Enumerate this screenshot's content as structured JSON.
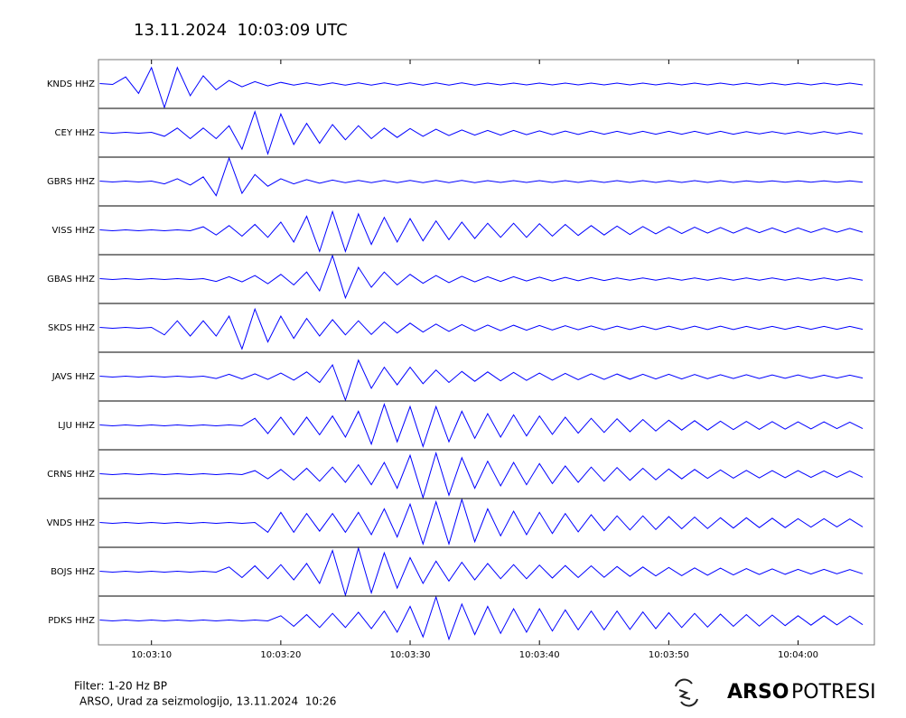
{
  "chart_data": {
    "type": "line",
    "title": "13.11.2024  10:03:09 UTC",
    "x": [
      6,
      7,
      8,
      9,
      10,
      11,
      12,
      13,
      14,
      15,
      16,
      17,
      18,
      19,
      20,
      21,
      22,
      23,
      24,
      25,
      26,
      27,
      28,
      29,
      30,
      31,
      32,
      33,
      34,
      35,
      36,
      37,
      38,
      39,
      40,
      41,
      42,
      43,
      44,
      45,
      46,
      47,
      48,
      49,
      50,
      51,
      52,
      53,
      54,
      55,
      56,
      57,
      58,
      59,
      60,
      61,
      62,
      63,
      64,
      65
    ],
    "xlim": [
      5.9,
      65.9
    ],
    "xticks": [
      {
        "value": 10,
        "label": "10:03:10"
      },
      {
        "value": 20,
        "label": "10:03:20"
      },
      {
        "value": 30,
        "label": "10:03:30"
      },
      {
        "value": 40,
        "label": "10:03:40"
      },
      {
        "value": 50,
        "label": "10:03:50"
      },
      {
        "value": 60,
        "label": "10:04:00"
      }
    ],
    "series": [
      {
        "name": "KNDS HHZ",
        "color": "#0000ff",
        "values": [
          0.02,
          0.02,
          0.3,
          0.4,
          0.7,
          1,
          0.7,
          0.5,
          0.35,
          0.25,
          0.15,
          0.12,
          0.1,
          0.08,
          0.07,
          0.05,
          0.05,
          0.05,
          0.05,
          0.05,
          0.05,
          0.05,
          0.05,
          0.05,
          0.05,
          0.05,
          0.05,
          0.05,
          0.05,
          0.05,
          0.04,
          0.04,
          0.04,
          0.04,
          0.04,
          0.04,
          0.04,
          0.04,
          0.04,
          0.04,
          0.04,
          0.04,
          0.04,
          0.04,
          0.04,
          0.04,
          0.04,
          0.04,
          0.04,
          0.04,
          0.04,
          0.04,
          0.04,
          0.04,
          0.04,
          0.04,
          0.04,
          0.04,
          0.04,
          0.04
        ]
      },
      {
        "name": "CEY HHZ",
        "color": "#0000ff",
        "values": [
          0.02,
          0.02,
          0.02,
          0.02,
          0.02,
          0.15,
          0.2,
          0.25,
          0.2,
          0.25,
          0.3,
          0.7,
          0.9,
          0.9,
          0.8,
          0.5,
          0.4,
          0.45,
          0.35,
          0.3,
          0.3,
          0.25,
          0.2,
          0.2,
          0.18,
          0.15,
          0.15,
          0.12,
          0.12,
          0.1,
          0.1,
          0.1,
          0.1,
          0.08,
          0.08,
          0.08,
          0.07,
          0.07,
          0.07,
          0.06,
          0.06,
          0.06,
          0.06,
          0.06,
          0.06,
          0.06,
          0.06,
          0.06,
          0.06,
          0.06,
          0.05,
          0.05,
          0.05,
          0.05,
          0.05,
          0.05,
          0.05,
          0.05,
          0.05,
          0.05
        ]
      },
      {
        "name": "GBRS HHZ",
        "color": "#0000ff",
        "values": [
          0.02,
          0.02,
          0.02,
          0.02,
          0.02,
          0.1,
          0.12,
          0.15,
          0.2,
          0.6,
          1,
          0.5,
          0.3,
          0.2,
          0.12,
          0.1,
          0.08,
          0.07,
          0.06,
          0.05,
          0.05,
          0.05,
          0.05,
          0.05,
          0.05,
          0.05,
          0.05,
          0.05,
          0.05,
          0.05,
          0.04,
          0.04,
          0.04,
          0.04,
          0.04,
          0.04,
          0.04,
          0.04,
          0.04,
          0.04,
          0.04,
          0.04,
          0.04,
          0.04,
          0.04,
          0.04,
          0.04,
          0.04,
          0.04,
          0.04,
          0.03,
          0.03,
          0.03,
          0.03,
          0.03,
          0.03,
          0.03,
          0.03,
          0.03,
          0.03
        ]
      },
      {
        "name": "VISS HHZ",
        "color": "#0000ff",
        "values": [
          0.02,
          0.02,
          0.02,
          0.02,
          0.02,
          0.02,
          0.02,
          0.02,
          0.15,
          0.2,
          0.2,
          0.25,
          0.25,
          0.3,
          0.35,
          0.5,
          0.6,
          0.9,
          0.8,
          0.9,
          0.7,
          0.6,
          0.55,
          0.5,
          0.5,
          0.45,
          0.4,
          0.4,
          0.35,
          0.35,
          0.3,
          0.3,
          0.3,
          0.3,
          0.28,
          0.25,
          0.25,
          0.22,
          0.2,
          0.2,
          0.18,
          0.18,
          0.16,
          0.15,
          0.15,
          0.14,
          0.13,
          0.12,
          0.12,
          0.12,
          0.11,
          0.1,
          0.1,
          0.1,
          0.1,
          0.09,
          0.09,
          0.08,
          0.08,
          0.08
        ]
      },
      {
        "name": "GBAS HHZ",
        "color": "#0000ff",
        "values": [
          0.02,
          0.02,
          0.02,
          0.02,
          0.02,
          0.02,
          0.02,
          0.02,
          0.02,
          0.1,
          0.1,
          0.12,
          0.15,
          0.2,
          0.2,
          0.25,
          0.3,
          0.5,
          1,
          0.8,
          0.5,
          0.35,
          0.3,
          0.25,
          0.2,
          0.18,
          0.15,
          0.15,
          0.12,
          0.12,
          0.1,
          0.1,
          0.1,
          0.08,
          0.08,
          0.08,
          0.07,
          0.07,
          0.06,
          0.06,
          0.05,
          0.05,
          0.05,
          0.05,
          0.05,
          0.05,
          0.05,
          0.05,
          0.05,
          0.05,
          0.05,
          0.05,
          0.05,
          0.05,
          0.05,
          0.05,
          0.05,
          0.05,
          0.05,
          0.05
        ]
      },
      {
        "name": "SKDS HHZ",
        "color": "#0000ff",
        "values": [
          0.02,
          0.02,
          0.02,
          0.02,
          0.02,
          0.3,
          0.3,
          0.35,
          0.3,
          0.35,
          0.5,
          0.9,
          0.8,
          0.6,
          0.5,
          0.45,
          0.4,
          0.35,
          0.35,
          0.3,
          0.3,
          0.28,
          0.25,
          0.22,
          0.2,
          0.18,
          0.16,
          0.15,
          0.14,
          0.13,
          0.12,
          0.12,
          0.11,
          0.1,
          0.1,
          0.09,
          0.09,
          0.08,
          0.08,
          0.08,
          0.07,
          0.07,
          0.07,
          0.07,
          0.07,
          0.07,
          0.07,
          0.07,
          0.07,
          0.07,
          0.06,
          0.06,
          0.06,
          0.06,
          0.06,
          0.06,
          0.06,
          0.06,
          0.06,
          0.06
        ]
      },
      {
        "name": "JAVS HHZ",
        "color": "#0000ff",
        "values": [
          0.02,
          0.02,
          0.02,
          0.02,
          0.02,
          0.02,
          0.02,
          0.02,
          0.02,
          0.08,
          0.1,
          0.1,
          0.12,
          0.12,
          0.15,
          0.15,
          0.2,
          0.25,
          0.5,
          1,
          0.7,
          0.5,
          0.4,
          0.35,
          0.4,
          0.3,
          0.28,
          0.25,
          0.22,
          0.2,
          0.2,
          0.18,
          0.18,
          0.16,
          0.15,
          0.15,
          0.14,
          0.13,
          0.12,
          0.12,
          0.11,
          0.11,
          0.1,
          0.1,
          0.1,
          0.1,
          0.09,
          0.09,
          0.08,
          0.08,
          0.08,
          0.08,
          0.07,
          0.07,
          0.07,
          0.07,
          0.06,
          0.06,
          0.06,
          0.06
        ]
      },
      {
        "name": "LJU HHZ",
        "color": "#0000ff",
        "values": [
          0.02,
          0.02,
          0.02,
          0.02,
          0.02,
          0.02,
          0.02,
          0.02,
          0.02,
          0.02,
          0.02,
          0.02,
          0.3,
          0.35,
          0.35,
          0.4,
          0.35,
          0.4,
          0.4,
          0.5,
          0.6,
          0.8,
          0.9,
          0.7,
          0.8,
          0.9,
          0.8,
          0.7,
          0.6,
          0.55,
          0.5,
          0.5,
          0.45,
          0.45,
          0.4,
          0.38,
          0.35,
          0.33,
          0.3,
          0.3,
          0.28,
          0.27,
          0.25,
          0.24,
          0.22,
          0.2,
          0.2,
          0.2,
          0.18,
          0.18,
          0.17,
          0.17,
          0.16,
          0.16,
          0.15,
          0.15,
          0.15,
          0.14,
          0.14,
          0.14
        ]
      },
      {
        "name": "CRNS HHZ",
        "color": "#0000ff",
        "values": [
          0.02,
          0.02,
          0.02,
          0.02,
          0.02,
          0.02,
          0.02,
          0.02,
          0.02,
          0.02,
          0.02,
          0.02,
          0.15,
          0.2,
          0.2,
          0.25,
          0.25,
          0.3,
          0.3,
          0.35,
          0.4,
          0.45,
          0.5,
          0.6,
          0.8,
          1,
          0.9,
          0.9,
          0.7,
          0.6,
          0.55,
          0.5,
          0.5,
          0.45,
          0.45,
          0.4,
          0.35,
          0.35,
          0.3,
          0.3,
          0.28,
          0.26,
          0.25,
          0.24,
          0.22,
          0.2,
          0.2,
          0.18,
          0.18,
          0.17,
          0.16,
          0.16,
          0.15,
          0.15,
          0.15,
          0.14,
          0.14,
          0.13,
          0.13,
          0.13
        ]
      },
      {
        "name": "VNDS HHZ",
        "color": "#0000ff",
        "values": [
          0.02,
          0.02,
          0.02,
          0.02,
          0.02,
          0.02,
          0.02,
          0.02,
          0.02,
          0.02,
          0.02,
          0.02,
          0.02,
          0.4,
          0.45,
          0.4,
          0.4,
          0.35,
          0.4,
          0.4,
          0.45,
          0.5,
          0.6,
          0.6,
          0.8,
          0.9,
          0.9,
          0.9,
          1,
          0.8,
          0.6,
          0.55,
          0.5,
          0.5,
          0.45,
          0.45,
          0.4,
          0.38,
          0.35,
          0.33,
          0.3,
          0.3,
          0.3,
          0.28,
          0.27,
          0.25,
          0.25,
          0.24,
          0.22,
          0.22,
          0.22,
          0.2,
          0.2,
          0.2,
          0.18,
          0.18,
          0.18,
          0.17,
          0.17,
          0.17
        ]
      },
      {
        "name": "BOJS HHZ",
        "color": "#0000ff",
        "values": [
          0.02,
          0.02,
          0.02,
          0.02,
          0.02,
          0.02,
          0.02,
          0.02,
          0.02,
          0.02,
          0.2,
          0.25,
          0.25,
          0.3,
          0.3,
          0.35,
          0.35,
          0.5,
          0.9,
          1,
          1,
          0.9,
          0.8,
          0.7,
          0.6,
          0.5,
          0.45,
          0.4,
          0.4,
          0.35,
          0.35,
          0.3,
          0.3,
          0.3,
          0.28,
          0.27,
          0.26,
          0.25,
          0.25,
          0.24,
          0.22,
          0.2,
          0.2,
          0.18,
          0.18,
          0.17,
          0.16,
          0.15,
          0.15,
          0.14,
          0.13,
          0.12,
          0.12,
          0.11,
          0.1,
          0.1,
          0.1,
          0.09,
          0.09,
          0.09
        ]
      },
      {
        "name": "PDKS HHZ",
        "color": "#0000ff",
        "values": [
          0.02,
          0.02,
          0.02,
          0.02,
          0.02,
          0.02,
          0.02,
          0.02,
          0.02,
          0.02,
          0.02,
          0.02,
          0.02,
          0.02,
          0.2,
          0.25,
          0.25,
          0.3,
          0.3,
          0.3,
          0.35,
          0.35,
          0.4,
          0.5,
          0.6,
          0.7,
          1,
          0.8,
          0.7,
          0.6,
          0.6,
          0.55,
          0.5,
          0.5,
          0.5,
          0.45,
          0.45,
          0.4,
          0.4,
          0.4,
          0.4,
          0.38,
          0.36,
          0.35,
          0.33,
          0.3,
          0.3,
          0.28,
          0.27,
          0.25,
          0.25,
          0.24,
          0.23,
          0.22,
          0.2,
          0.2,
          0.2,
          0.19,
          0.19,
          0.18
        ]
      }
    ]
  },
  "footer": {
    "filter": "Filter: 1-20 Hz BP",
    "source": "ARSO, Urad za seizmologijo, 13.11.2024  10:26",
    "logo_bold": "ARSO",
    "logo_light": "POTRESI"
  }
}
